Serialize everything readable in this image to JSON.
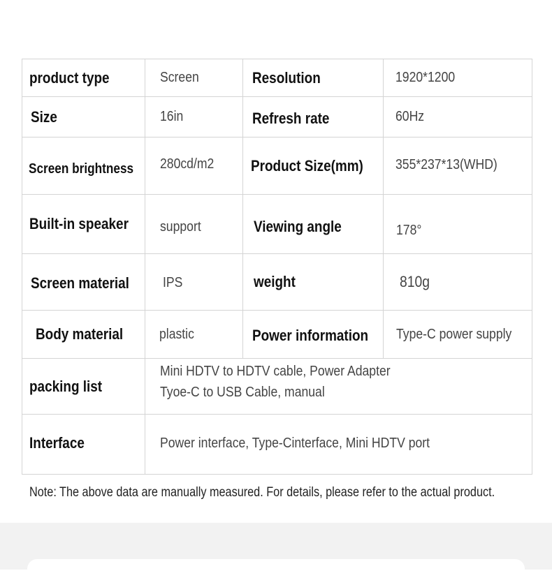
{
  "spec_table": {
    "rows": [
      [
        {
          "label": "product type",
          "value": "Screen"
        },
        {
          "label": "Resolution",
          "value": "1920*1200"
        }
      ],
      [
        {
          "label": "Size",
          "value": "16in"
        },
        {
          "label": "Refresh rate",
          "value": "60Hz"
        }
      ],
      [
        {
          "label": "Screen brightness",
          "value": "280cd/m2"
        },
        {
          "label": "Product Size(mm)",
          "value": "355*237*13(WHD)"
        }
      ],
      [
        {
          "label": "Built-in speaker",
          "value": "support"
        },
        {
          "label": "Viewing angle",
          "value": "178°"
        }
      ],
      [
        {
          "label": "Screen material",
          "value": "IPS"
        },
        {
          "label": "weight",
          "value": "810g"
        }
      ],
      [
        {
          "label": "Body material",
          "value": "plastic"
        },
        {
          "label": "Power information",
          "value": "Type-C power supply"
        }
      ]
    ],
    "packing_list": {
      "label": "packing list",
      "lines": [
        "Mini HDTV to HDTV  cable, Power Adapter",
        "Tyoe-C to USB Cable, manual"
      ]
    },
    "interface": {
      "label": "Interface",
      "value": "Power interface, Type-Cinterface, Mini HDTV  port"
    }
  },
  "note": "Note: The above data are manually measured. For details, please refer to the actual product."
}
